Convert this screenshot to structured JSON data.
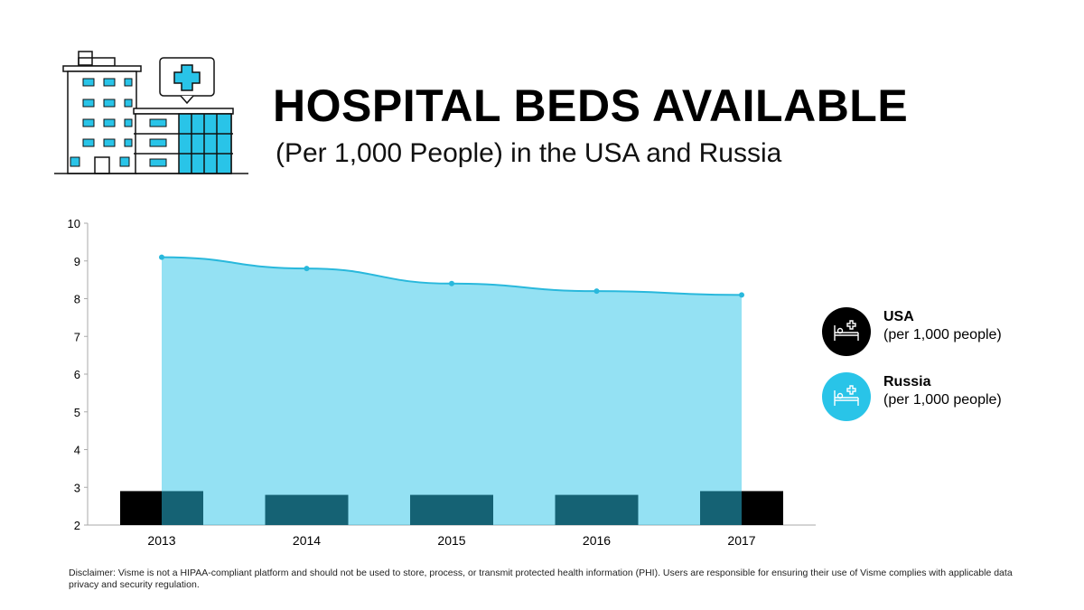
{
  "header": {
    "title": "HOSPITAL BEDS AVAILABLE",
    "subtitle": "(Per 1,000 People) in the USA and Russia"
  },
  "chart_data": {
    "type": "bar+area",
    "title": "HOSPITAL BEDS AVAILABLE",
    "subtitle": "(Per 1,000 People) in the USA and Russia",
    "categories": [
      "2013",
      "2014",
      "2015",
      "2016",
      "2017"
    ],
    "series": [
      {
        "name": "USA",
        "sub": "(per 1,000 people)",
        "type": "bar",
        "color": "#000000",
        "values": [
          2.9,
          2.8,
          2.8,
          2.8,
          2.9
        ]
      },
      {
        "name": "Russia",
        "sub": "(per 1,000 people)",
        "type": "area",
        "color": "#29c4e8",
        "values": [
          9.1,
          8.8,
          8.4,
          8.2,
          8.1
        ]
      }
    ],
    "ylim": [
      2,
      10
    ],
    "yticks": [
      "2",
      "3",
      "4",
      "5",
      "6",
      "7",
      "8",
      "9",
      "10"
    ],
    "xlabel": "",
    "ylabel": "",
    "legend_position": "right"
  },
  "icons": {
    "legend": "hospital-bed-icon",
    "illustration": "hospital-building-icon"
  },
  "disclaimer": "Disclaimer: Visme is not a HIPAA-compliant platform and should not be used to store, process, or transmit protected health information (PHI). Users are responsible for ensuring their use of Visme complies with applicable data privacy and security regulation."
}
